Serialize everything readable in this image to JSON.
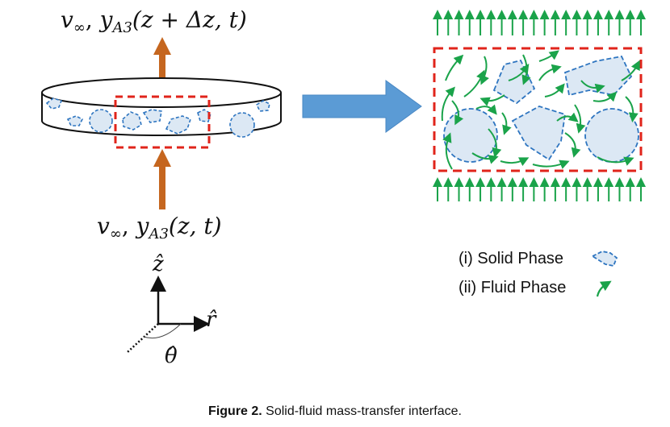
{
  "labels": {
    "top_flow": "v∞, yₐ₃(z + Δz, t)",
    "top_flow_v": "v",
    "top_flow_inf": "∞",
    "top_flow_y": "y",
    "top_flow_sub": "A3",
    "top_flow_args": "(z + Δz, t)",
    "bottom_flow_v": "v",
    "bottom_flow_inf": "∞",
    "bottom_flow_y": "y",
    "bottom_flow_sub": "A3",
    "bottom_flow_args": "(z, t)",
    "axis_z": "ẑ",
    "axis_r": "r̂",
    "axis_theta": "θ̂"
  },
  "legend": {
    "solid": "(i) Solid Phase",
    "fluid": "(ii) Fluid Phase"
  },
  "caption": {
    "prefix": "Figure 2.",
    "text": " Solid-fluid mass-transfer interface."
  },
  "colors": {
    "solid_fill": "#dce8f4",
    "solid_stroke": "#2e75c0",
    "fluid_arrow": "#1aa34a",
    "flow_arrow": "#c5661f",
    "highlight_box": "#e0241b",
    "big_arrow": "#5b9bd5"
  }
}
